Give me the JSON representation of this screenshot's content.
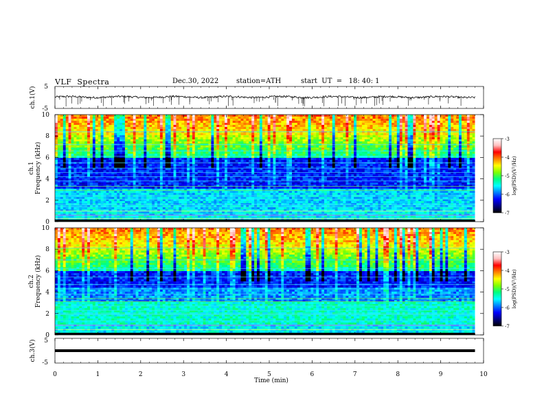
{
  "header": {
    "title": "VLF  Spectra",
    "date": "Dec.30, 2022",
    "station": "station=ATH",
    "start": "start  UT  =   18: 40: 1"
  },
  "chart_data": [
    {
      "type": "line",
      "panel": "ch1-waveform",
      "ylabel": "ch.1(V)",
      "yticks": [
        "5",
        "-5"
      ],
      "ylim": [
        -5,
        5
      ],
      "xlim": [
        0,
        10
      ],
      "x_data_end": 9.8,
      "baseline": 0.2,
      "noise": "spiky waveform, mostly within ±1 V, spikes to about -4 V",
      "color": "#000000"
    },
    {
      "type": "heatmap",
      "panel": "ch1-spectrogram",
      "ylabel": "ch.1\nFrequency  (kHz)",
      "yticks": [
        "0",
        "2",
        "4",
        "6",
        "8",
        "10"
      ],
      "ylim": [
        0,
        10
      ],
      "xlim": [
        0,
        10
      ],
      "x_data_end": 9.8,
      "z_range": [
        -7,
        -3
      ],
      "colorbar": {
        "label": "log(PSD)(V²/Hz)",
        "ticks": [
          "-3",
          "-4",
          "-5",
          "-6",
          "-7"
        ]
      },
      "horizontal_lines_khz": [
        0.3,
        0.6,
        1.0,
        1.4,
        1.6,
        2.1,
        2.4,
        2.9,
        3.3,
        3.8,
        4.2,
        4.6,
        5.0,
        5.5,
        6.1,
        6.6,
        7.2,
        8.4
      ]
    },
    {
      "type": "heatmap",
      "panel": "ch2-spectrogram",
      "ylabel": "ch.2\nFrequency  (kHz)",
      "yticks": [
        "0",
        "2",
        "4",
        "6",
        "8",
        "10"
      ],
      "ylim": [
        0,
        10
      ],
      "xlim": [
        0,
        10
      ],
      "x_data_end": 9.8,
      "z_range": [
        -7,
        -3
      ],
      "colorbar": {
        "label": "log(PSD)(V²/Hz)",
        "ticks": [
          "-3",
          "-4",
          "-5",
          "-6",
          "-7"
        ]
      },
      "horizontal_lines_khz": [
        0.5,
        0.9,
        1.3,
        1.9,
        2.0,
        2.3,
        2.7,
        3.1,
        3.4,
        3.8,
        4.3,
        4.7,
        5.4,
        6.2,
        7.0,
        8.1
      ]
    },
    {
      "type": "line",
      "panel": "ch3-waveform",
      "ylabel": "ch.3(V)",
      "yticks": [
        "5",
        "-5"
      ],
      "ylim": [
        -5,
        5
      ],
      "xlim": [
        0,
        10
      ],
      "x_data_end": 9.8,
      "value": 0.0,
      "color": "#000000"
    }
  ],
  "xaxis": {
    "label": "Time  (min)",
    "ticks": [
      "0",
      "1",
      "2",
      "3",
      "4",
      "5",
      "6",
      "7",
      "8",
      "9",
      "10"
    ],
    "range": [
      0,
      10
    ]
  },
  "colors": {
    "background": "#ffffff",
    "axes": "#000000",
    "colormap": [
      "#000000",
      "#000080",
      "#0000ff",
      "#0080ff",
      "#00ffff",
      "#00ff80",
      "#80ff00",
      "#ffff00",
      "#ff8000",
      "#ff0000",
      "#ffc0c0",
      "#ffffff"
    ]
  }
}
